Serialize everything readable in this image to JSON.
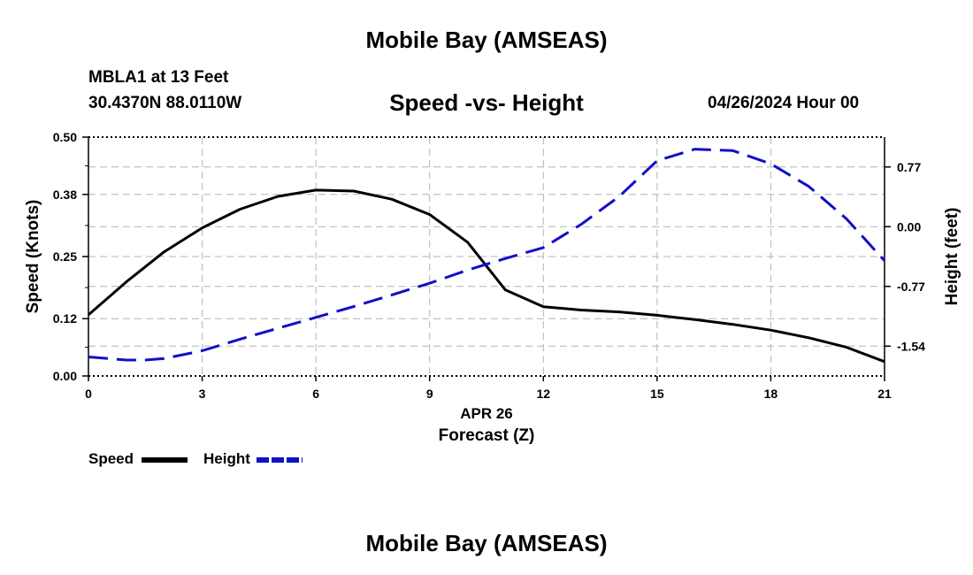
{
  "header": {
    "title": "Mobile Bay (AMSEAS)",
    "station": "MBLA1 at 13 Feet",
    "coords": "30.4370N  88.0110W",
    "datetime": "04/26/2024 Hour 00"
  },
  "footer": {
    "title": "Mobile Bay (AMSEAS)"
  },
  "chart_data": {
    "type": "line",
    "title": "Speed -vs- Height",
    "xlabel": "Forecast (Z)",
    "x_date_label": "APR 26",
    "ylabel": "Speed (Knots)",
    "y2label": "Height (feet)",
    "x_ticks": [
      "0",
      "3",
      "6",
      "9",
      "12",
      "15",
      "18",
      "21"
    ],
    "y_ticks": [
      "0.00",
      "0.12",
      "0.25",
      "0.38",
      "0.50"
    ],
    "y2_ticks": [
      "0.77",
      "0.00",
      "-0.77",
      "-1.54"
    ],
    "xlim": [
      0,
      21
    ],
    "ylim": [
      0,
      0.5
    ],
    "y2lim": [
      -1.925,
      1.155
    ],
    "grid": true,
    "series": [
      {
        "name": "Speed",
        "axis": "left",
        "color": "#000000",
        "dash": "solid",
        "x": [
          0,
          1,
          2,
          3,
          4,
          5,
          6,
          7,
          8,
          9,
          10,
          11,
          12,
          13,
          14,
          15,
          16,
          17,
          18,
          19,
          20,
          21
        ],
        "values": [
          0.128,
          0.197,
          0.26,
          0.31,
          0.349,
          0.376,
          0.389,
          0.387,
          0.37,
          0.338,
          0.28,
          0.18,
          0.145,
          0.138,
          0.134,
          0.127,
          0.118,
          0.108,
          0.096,
          0.08,
          0.06,
          0.03
        ]
      },
      {
        "name": "Height",
        "axis": "right",
        "color": "#1010c8",
        "dash": "dashed",
        "x": [
          0,
          1,
          1.5,
          2,
          3,
          4,
          5,
          6,
          7,
          8,
          9,
          10,
          11,
          12,
          13,
          14,
          15,
          16,
          17,
          18,
          19,
          20,
          21
        ],
        "values": [
          -1.68,
          -1.72,
          -1.72,
          -1.7,
          -1.6,
          -1.45,
          -1.31,
          -1.17,
          -1.03,
          -0.88,
          -0.73,
          -0.56,
          -0.41,
          -0.27,
          0.03,
          0.39,
          0.85,
          1.0,
          0.98,
          0.81,
          0.52,
          0.1,
          -0.44
        ]
      }
    ],
    "legend": [
      {
        "label": "Speed",
        "color": "#000000",
        "dash": "solid"
      },
      {
        "label": "Height",
        "color": "#1010c8",
        "dash": "dashed"
      }
    ]
  }
}
